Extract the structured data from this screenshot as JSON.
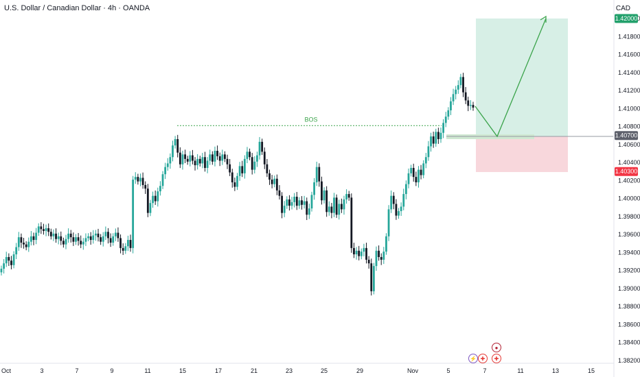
{
  "header": {
    "title": "U.S. Dollar / Canadian Dollar · 4h · OANDA",
    "currency": "CAD"
  },
  "colors": {
    "up": "#26a69a",
    "down": "#131722",
    "bos": "#3aa34a",
    "target_zone": "#d7efe6",
    "stop_zone": "#f8d7dc",
    "target_badge": "#22a06b",
    "stop_badge": "#f23645",
    "current_badge": "#5d606b"
  },
  "events": [
    {
      "name": "us-flag-icon",
      "glyph": "●"
    },
    {
      "name": "flash-icon",
      "glyph": "⚡"
    },
    {
      "name": "ca-flag-icon",
      "glyph": "✚"
    },
    {
      "name": "ca-flag-icon-2",
      "glyph": "✚"
    }
  ],
  "chart_data": {
    "type": "candlestick",
    "symbol": "USDCAD",
    "timeframe": "4h",
    "x_ticks": [
      "Oct",
      "3",
      "7",
      "9",
      "11",
      "15",
      "17",
      "21",
      "23",
      "25",
      "29",
      "Nov",
      "5",
      "7",
      "11",
      "13",
      "15"
    ],
    "y_ticks": [
      "1.42000",
      "1.41800",
      "1.41600",
      "1.41400",
      "1.41200",
      "1.41000",
      "1.40800",
      "1.40600",
      "1.40400",
      "1.40200",
      "1.40000",
      "1.39800",
      "1.39600",
      "1.39400",
      "1.39200",
      "1.39000",
      "1.38800",
      "1.38600",
      "1.38400",
      "1.38200"
    ],
    "ylim": [
      1.3818,
      1.4215
    ],
    "price_badges": [
      {
        "label": "1.42000",
        "value": 1.42,
        "role": "target"
      },
      {
        "label": "1.40700",
        "value": 1.407,
        "role": "current"
      },
      {
        "label": "1.40300",
        "value": 1.403,
        "role": "stop"
      }
    ],
    "annotations": {
      "bos_label": "BOS",
      "bos_level": 1.4081
    },
    "closes": [
      1.3922,
      1.3928,
      1.3935,
      1.3931,
      1.3926,
      1.3938,
      1.3946,
      1.3957,
      1.3951,
      1.3949,
      1.3946,
      1.3952,
      1.3958,
      1.3954,
      1.3962,
      1.3969,
      1.3966,
      1.3964,
      1.3967,
      1.3963,
      1.3958,
      1.3961,
      1.3955,
      1.3958,
      1.3953,
      1.3949,
      1.3955,
      1.3961,
      1.3957,
      1.3952,
      1.3957,
      1.3953,
      1.3949,
      1.3952,
      1.3956,
      1.3958,
      1.3954,
      1.3959,
      1.3961,
      1.3957,
      1.3952,
      1.3958,
      1.3963,
      1.3956,
      1.3951,
      1.3958,
      1.3962,
      1.3956,
      1.3945,
      1.3942,
      1.3947,
      1.3954,
      1.3945,
      1.4021,
      1.4024,
      1.4019,
      1.4023,
      1.4015,
      1.4011,
      1.3984,
      1.3995,
      1.4003,
      1.3997,
      1.4008,
      1.4014,
      1.4027,
      1.4035,
      1.4039,
      1.4046,
      1.4059,
      1.4066,
      1.4051,
      1.4038,
      1.4049,
      1.4044,
      1.4041,
      1.4048,
      1.4042,
      1.4037,
      1.4044,
      1.4039,
      1.4046,
      1.4034,
      1.4042,
      1.4049,
      1.4041,
      1.4053,
      1.4047,
      1.4042,
      1.4049,
      1.4044,
      1.4038,
      1.4029,
      1.4018,
      1.4013,
      1.4025,
      1.4036,
      1.4028,
      1.4044,
      1.4052,
      1.4046,
      1.4032,
      1.4041,
      1.4048,
      1.4063,
      1.4052,
      1.4038,
      1.4028,
      1.4021,
      1.4016,
      1.4022,
      1.4009,
      1.4003,
      1.3984,
      1.3992,
      1.3999,
      1.3992,
      1.3996,
      1.4002,
      1.3992,
      1.3998,
      1.3993,
      1.3997,
      1.3982,
      1.3989,
      1.4004,
      1.4018,
      1.4035,
      1.4019,
      1.3998,
      1.4009,
      1.3985,
      1.3991,
      1.3984,
      1.4001,
      1.3982,
      1.3994,
      1.3988,
      1.3999,
      1.4005,
      1.4001,
      1.3945,
      1.3938,
      1.3942,
      1.3936,
      1.3941,
      1.3945,
      1.3932,
      1.3928,
      1.3897,
      1.3925,
      1.3942,
      1.3935,
      1.3932,
      1.3941,
      1.3958,
      1.3988,
      1.4003,
      1.3994,
      1.3981,
      1.3986,
      1.3991,
      1.4005,
      1.4016,
      1.4028,
      1.4034,
      1.4024,
      1.4018,
      1.4032,
      1.4026,
      1.4039,
      1.4046,
      1.4058,
      1.4069,
      1.4061,
      1.4074,
      1.4066,
      1.4073,
      1.4084,
      1.4091,
      1.4098,
      1.4108,
      1.4116,
      1.4121,
      1.4126,
      1.4135,
      1.4118,
      1.4109,
      1.4103,
      1.4104,
      1.4101
    ]
  }
}
